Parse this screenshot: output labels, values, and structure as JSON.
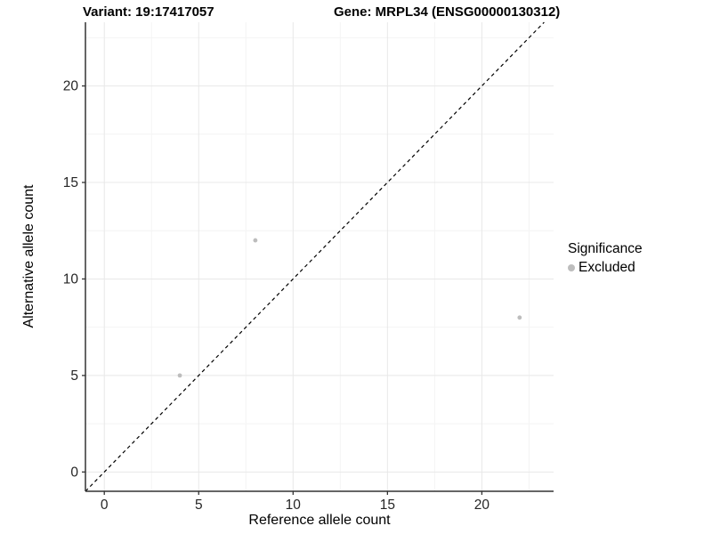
{
  "header": {
    "variant_title": "Variant: 19:17417057",
    "gene_title": "Gene: MRPL34 (ENSG00000130312)"
  },
  "chart_data": {
    "type": "scatter",
    "title_left": "Variant: 19:17417057",
    "title_right": "Gene: MRPL34 (ENSG00000130312)",
    "xlabel": "Reference allele count",
    "ylabel": "Alternative allele count",
    "xlim": [
      -1,
      23.8
    ],
    "ylim": [
      -1,
      23.3
    ],
    "x_ticks": [
      0,
      5,
      10,
      15,
      20
    ],
    "y_ticks": [
      0,
      5,
      10,
      15,
      20
    ],
    "minor_grid_step": 2.5,
    "grid": true,
    "legend_position": "right",
    "series": [
      {
        "name": "Excluded",
        "color": "#bdbdbd",
        "points": [
          {
            "x": 4,
            "y": 5
          },
          {
            "x": 8,
            "y": 12
          },
          {
            "x": 22,
            "y": 8
          }
        ]
      }
    ],
    "reference_line": {
      "kind": "identity",
      "label": "y = x",
      "style": "dashed",
      "color": "#000000"
    },
    "legend": {
      "title": "Significance",
      "items": [
        {
          "label": "Excluded",
          "color": "#bdbdbd"
        }
      ]
    }
  },
  "colors": {
    "background": "#ffffff",
    "axis_line": "#333333",
    "tick_text": "#262626",
    "grid_major": "#e8e8e8",
    "grid_minor": "#f4f4f4",
    "point": "#bdbdbd"
  }
}
